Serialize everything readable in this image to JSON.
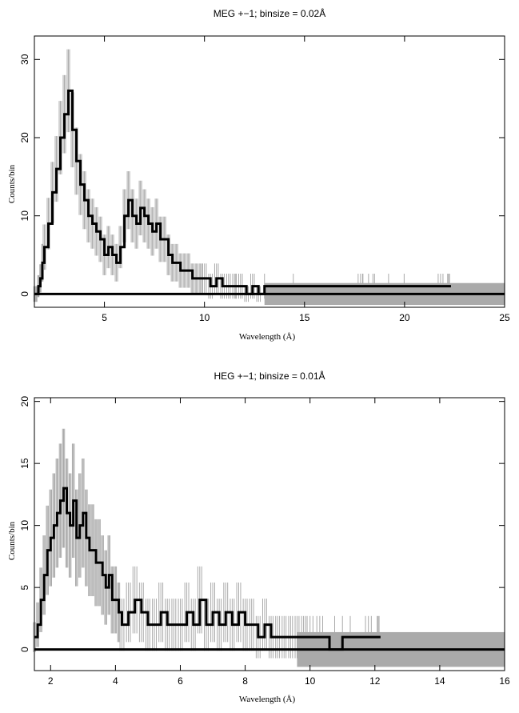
{
  "chart_data": [
    {
      "type": "line",
      "title": "MEG +−1; binsize = 0.02Å",
      "xlabel": "Wavelength (Å)",
      "ylabel": "Counts/bin",
      "xlim": [
        1.5,
        25
      ],
      "ylim": [
        -1.7,
        33
      ],
      "grid": false,
      "xticks": [
        5,
        10,
        15,
        20,
        25
      ],
      "xtick_labels": [
        "5",
        "10",
        "15",
        "20",
        "25"
      ],
      "yticks": [
        0,
        10,
        20,
        30
      ],
      "ytick_labels": [
        "0",
        "10",
        "20",
        "30"
      ],
      "background_band": {
        "x_start": 13.0,
        "x_end": 25,
        "y_low": -1.4,
        "y_high": 1.4
      },
      "series": [
        {
          "x": [
            1.5,
            1.6,
            1.7,
            1.8,
            1.9,
            2.0,
            2.2,
            2.4,
            2.6,
            2.8,
            3.0,
            3.2,
            3.4,
            3.6,
            3.8,
            4.0,
            4.2,
            4.4,
            4.6,
            4.8,
            5.0,
            5.2,
            5.4,
            5.6,
            5.8,
            6.0,
            6.2,
            6.4,
            6.6,
            6.8,
            7.0,
            7.2,
            7.4,
            7.6,
            7.8,
            8.0,
            8.2,
            8.4,
            8.6,
            8.8,
            9.0,
            9.2,
            9.4,
            9.6,
            9.8,
            10.0,
            10.3,
            10.6,
            10.9,
            11.2,
            11.5,
            11.8,
            12.1,
            12.4,
            12.7,
            13.0,
            17.8,
            18.2,
            19.2,
            21.8,
            22.2
          ],
          "y": [
            0,
            0,
            1,
            2,
            4,
            6,
            9,
            13,
            16,
            20,
            23,
            26,
            21,
            17,
            14,
            12,
            10,
            9,
            8,
            7,
            5,
            6,
            5,
            4,
            6,
            10,
            12,
            10,
            9,
            11,
            10,
            9,
            8,
            9,
            7,
            7,
            5,
            4,
            4,
            3,
            3,
            3,
            2,
            2,
            2,
            2,
            1,
            2,
            1,
            1,
            1,
            1,
            0,
            1,
            0,
            1,
            1,
            1,
            1,
            1,
            1
          ],
          "err": [
            1,
            1,
            1.4,
            1.8,
            2.4,
            2.9,
            3.3,
            3.9,
            4.2,
            4.7,
            5,
            5.3,
            4.8,
            4.3,
            3.9,
            3.7,
            3.4,
            3.2,
            3.1,
            2.9,
            2.6,
            2.7,
            2.6,
            2.4,
            2.7,
            3.4,
            3.7,
            3.4,
            3.2,
            3.5,
            3.4,
            3.2,
            3.1,
            3.2,
            2.9,
            2.9,
            2.6,
            2.4,
            2.4,
            2.2,
            2.2,
            2.2,
            1.9,
            1.9,
            1.9,
            1.9,
            1.6,
            1.9,
            1.6,
            1.6,
            1.6,
            1.6,
            1,
            1.6,
            1,
            1.6,
            1.6,
            1.6,
            1.6,
            1.6,
            1.6
          ]
        }
      ]
    },
    {
      "type": "line",
      "title": "HEG +−1; binsize = 0.01Å",
      "xlabel": "Wavelength (Å)",
      "ylabel": "Counts/bin",
      "xlim": [
        1.5,
        16
      ],
      "ylim": [
        -1.7,
        20.3
      ],
      "grid": false,
      "xticks": [
        2,
        4,
        6,
        8,
        10,
        12,
        14,
        16
      ],
      "xtick_labels": [
        "2",
        "4",
        "6",
        "8",
        "10",
        "12",
        "14",
        "16"
      ],
      "yticks": [
        0,
        5,
        10,
        15,
        20
      ],
      "ytick_labels": [
        "0",
        "5",
        "10",
        "15",
        "20"
      ],
      "background_band": {
        "x_start": 9.6,
        "x_end": 16,
        "y_low": -1.4,
        "y_high": 1.4
      },
      "series": [
        {
          "x": [
            1.5,
            1.6,
            1.7,
            1.8,
            1.9,
            2.0,
            2.1,
            2.2,
            2.3,
            2.4,
            2.5,
            2.6,
            2.7,
            2.8,
            2.9,
            3.0,
            3.1,
            3.2,
            3.3,
            3.4,
            3.5,
            3.6,
            3.7,
            3.8,
            3.9,
            4.0,
            4.1,
            4.2,
            4.4,
            4.6,
            4.8,
            5.0,
            5.2,
            5.4,
            5.6,
            5.8,
            6.0,
            6.2,
            6.4,
            6.6,
            6.8,
            7.0,
            7.2,
            7.4,
            7.6,
            7.8,
            8.0,
            8.2,
            8.4,
            8.6,
            8.8,
            9.0,
            9.2,
            9.4,
            9.6,
            9.8,
            10.0,
            10.3,
            10.6,
            11.0,
            11.8,
            12.1
          ],
          "y": [
            1,
            2,
            4,
            6,
            8,
            9,
            10,
            11,
            12,
            13,
            11,
            10,
            12,
            9,
            10,
            11,
            9,
            8,
            8,
            7,
            7,
            6,
            5,
            6,
            4,
            4,
            3,
            2,
            3,
            4,
            3,
            2,
            2,
            3,
            2,
            2,
            2,
            3,
            2,
            4,
            2,
            3,
            2,
            3,
            2,
            3,
            2,
            2,
            1,
            2,
            1,
            1,
            1,
            1,
            1,
            1,
            1,
            1,
            0,
            1,
            1,
            1
          ],
          "err": [
            1.2,
            1.8,
            2.6,
            3.2,
            3.6,
            3.9,
            4.2,
            4.4,
            4.6,
            4.8,
            4.4,
            4.2,
            4.6,
            3.9,
            4.2,
            4.4,
            3.9,
            3.7,
            3.7,
            3.5,
            3.5,
            3.2,
            3,
            3.2,
            2.7,
            2.7,
            2.4,
            2.1,
            2.4,
            2.7,
            2.4,
            2.1,
            2.1,
            2.4,
            2.1,
            2.1,
            2.1,
            2.4,
            2.1,
            2.7,
            2.1,
            2.4,
            2.1,
            2.4,
            2.1,
            2.4,
            2.1,
            2.1,
            1.7,
            2.1,
            1.7,
            1.7,
            1.7,
            1.7,
            1.7,
            1.7,
            1.7,
            1.7,
            1.2,
            1.7,
            1.7,
            1.7
          ]
        }
      ]
    }
  ]
}
